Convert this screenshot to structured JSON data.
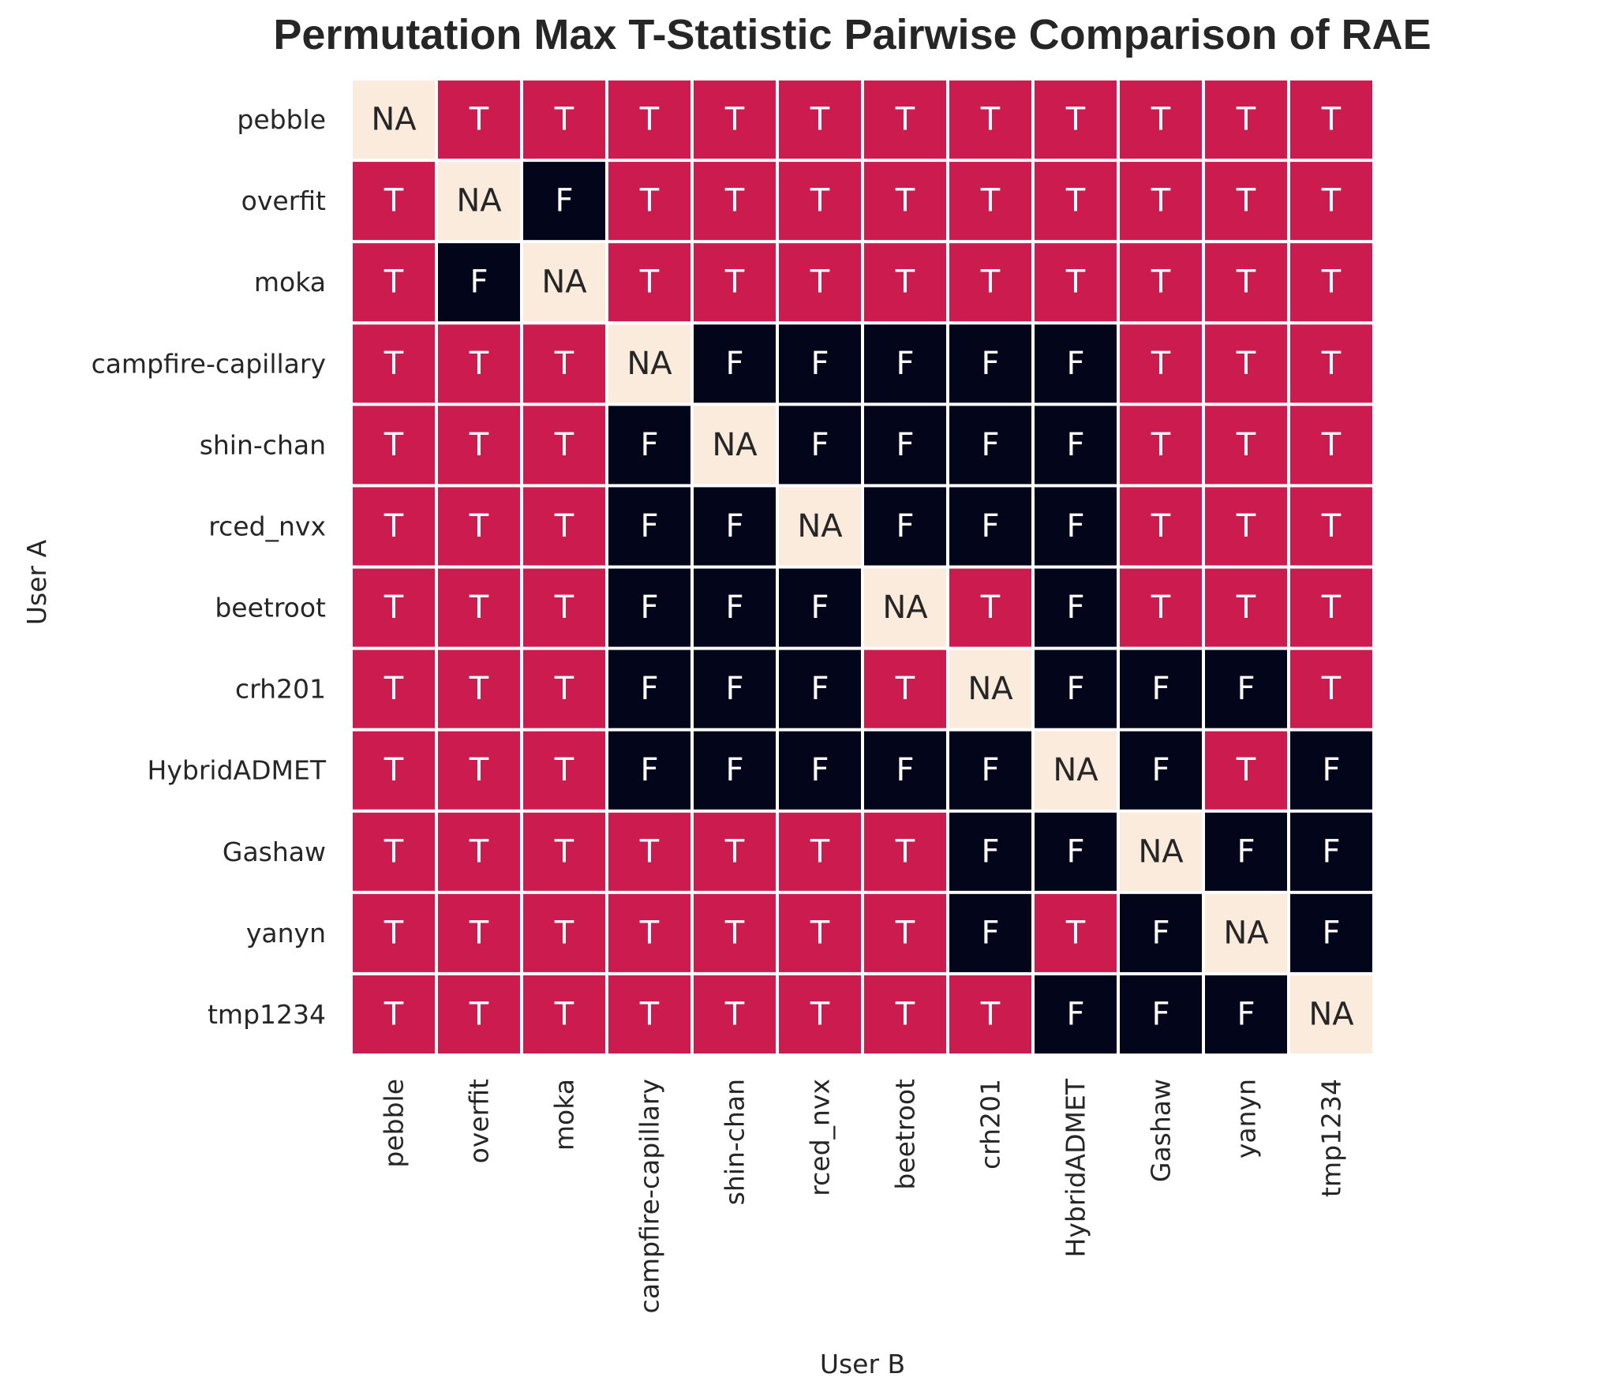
{
  "chart_data": {
    "type": "heatmap",
    "title": "Permutation Max T-Statistic Pairwise Comparison of RAE",
    "xlabel": "User B",
    "ylabel": "User A",
    "rows": [
      "pebble",
      "overfit",
      "moka",
      "campfire-capillary",
      "shin-chan",
      "rced_nvx",
      "beetroot",
      "crh201",
      "HybridADMET",
      "Gashaw",
      "yanyn",
      "tmp1234"
    ],
    "columns": [
      "pebble",
      "overfit",
      "moka",
      "campfire-capillary",
      "shin-chan",
      "rced_nvx",
      "beetroot",
      "crh201",
      "HybridADMET",
      "Gashaw",
      "yanyn",
      "tmp1234"
    ],
    "values": [
      [
        "NA",
        "T",
        "T",
        "T",
        "T",
        "T",
        "T",
        "T",
        "T",
        "T",
        "T",
        "T"
      ],
      [
        "T",
        "NA",
        "F",
        "T",
        "T",
        "T",
        "T",
        "T",
        "T",
        "T",
        "T",
        "T"
      ],
      [
        "T",
        "F",
        "NA",
        "T",
        "T",
        "T",
        "T",
        "T",
        "T",
        "T",
        "T",
        "T"
      ],
      [
        "T",
        "T",
        "T",
        "NA",
        "F",
        "F",
        "F",
        "F",
        "F",
        "T",
        "T",
        "T"
      ],
      [
        "T",
        "T",
        "T",
        "F",
        "NA",
        "F",
        "F",
        "F",
        "F",
        "T",
        "T",
        "T"
      ],
      [
        "T",
        "T",
        "T",
        "F",
        "F",
        "NA",
        "F",
        "F",
        "F",
        "T",
        "T",
        "T"
      ],
      [
        "T",
        "T",
        "T",
        "F",
        "F",
        "F",
        "NA",
        "T",
        "F",
        "T",
        "T",
        "T"
      ],
      [
        "T",
        "T",
        "T",
        "F",
        "F",
        "F",
        "T",
        "NA",
        "F",
        "F",
        "F",
        "T"
      ],
      [
        "T",
        "T",
        "T",
        "F",
        "F",
        "F",
        "F",
        "F",
        "NA",
        "F",
        "T",
        "F"
      ],
      [
        "T",
        "T",
        "T",
        "T",
        "T",
        "T",
        "T",
        "F",
        "F",
        "NA",
        "F",
        "F"
      ],
      [
        "T",
        "T",
        "T",
        "T",
        "T",
        "T",
        "T",
        "F",
        "T",
        "F",
        "NA",
        "F"
      ],
      [
        "T",
        "T",
        "T",
        "T",
        "T",
        "T",
        "T",
        "T",
        "F",
        "F",
        "F",
        "NA"
      ]
    ],
    "colors": {
      "T": "#cb1b4f",
      "F": "#03051a",
      "NA": "#faebdd",
      "text_on_dark": "#ffffff",
      "text_on_light": "#262626",
      "grid_line": "#ffffff"
    },
    "grid": false,
    "legend": "none"
  }
}
